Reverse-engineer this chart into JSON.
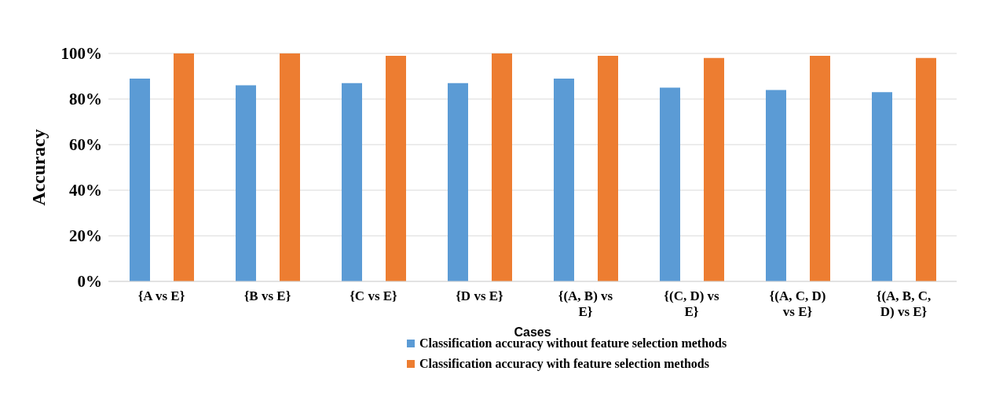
{
  "chart_data": {
    "type": "bar",
    "xlabel": "Cases",
    "ylabel": "Accuracy",
    "categories": [
      "{A vs E}",
      "{B vs E}",
      "{C vs E}",
      "{D vs E}",
      "{(A, B) vs E}",
      "{(C, D) vs E}",
      "{(A, C, D) vs E}",
      "{(A, B, C, D) vs E}"
    ],
    "series": [
      {
        "name": "Classification accuracy without feature selection methods",
        "color": "#5b9bd5",
        "values": [
          89,
          86,
          87,
          87,
          89,
          85,
          84,
          83
        ]
      },
      {
        "name": "Classification accuracy with feature selection methods",
        "color": "#ed7d31",
        "values": [
          100,
          100,
          99,
          100,
          99,
          98,
          99,
          98
        ]
      }
    ],
    "ylim": [
      0,
      100
    ],
    "yticks": [
      {
        "value": 0,
        "label": "0%"
      },
      {
        "value": 20,
        "label": "20%"
      },
      {
        "value": 40,
        "label": "40%"
      },
      {
        "value": 60,
        "label": "60%"
      },
      {
        "value": 80,
        "label": "80%"
      },
      {
        "value": 100,
        "label": "100%"
      }
    ],
    "grid": "y",
    "legend": "bottom"
  }
}
